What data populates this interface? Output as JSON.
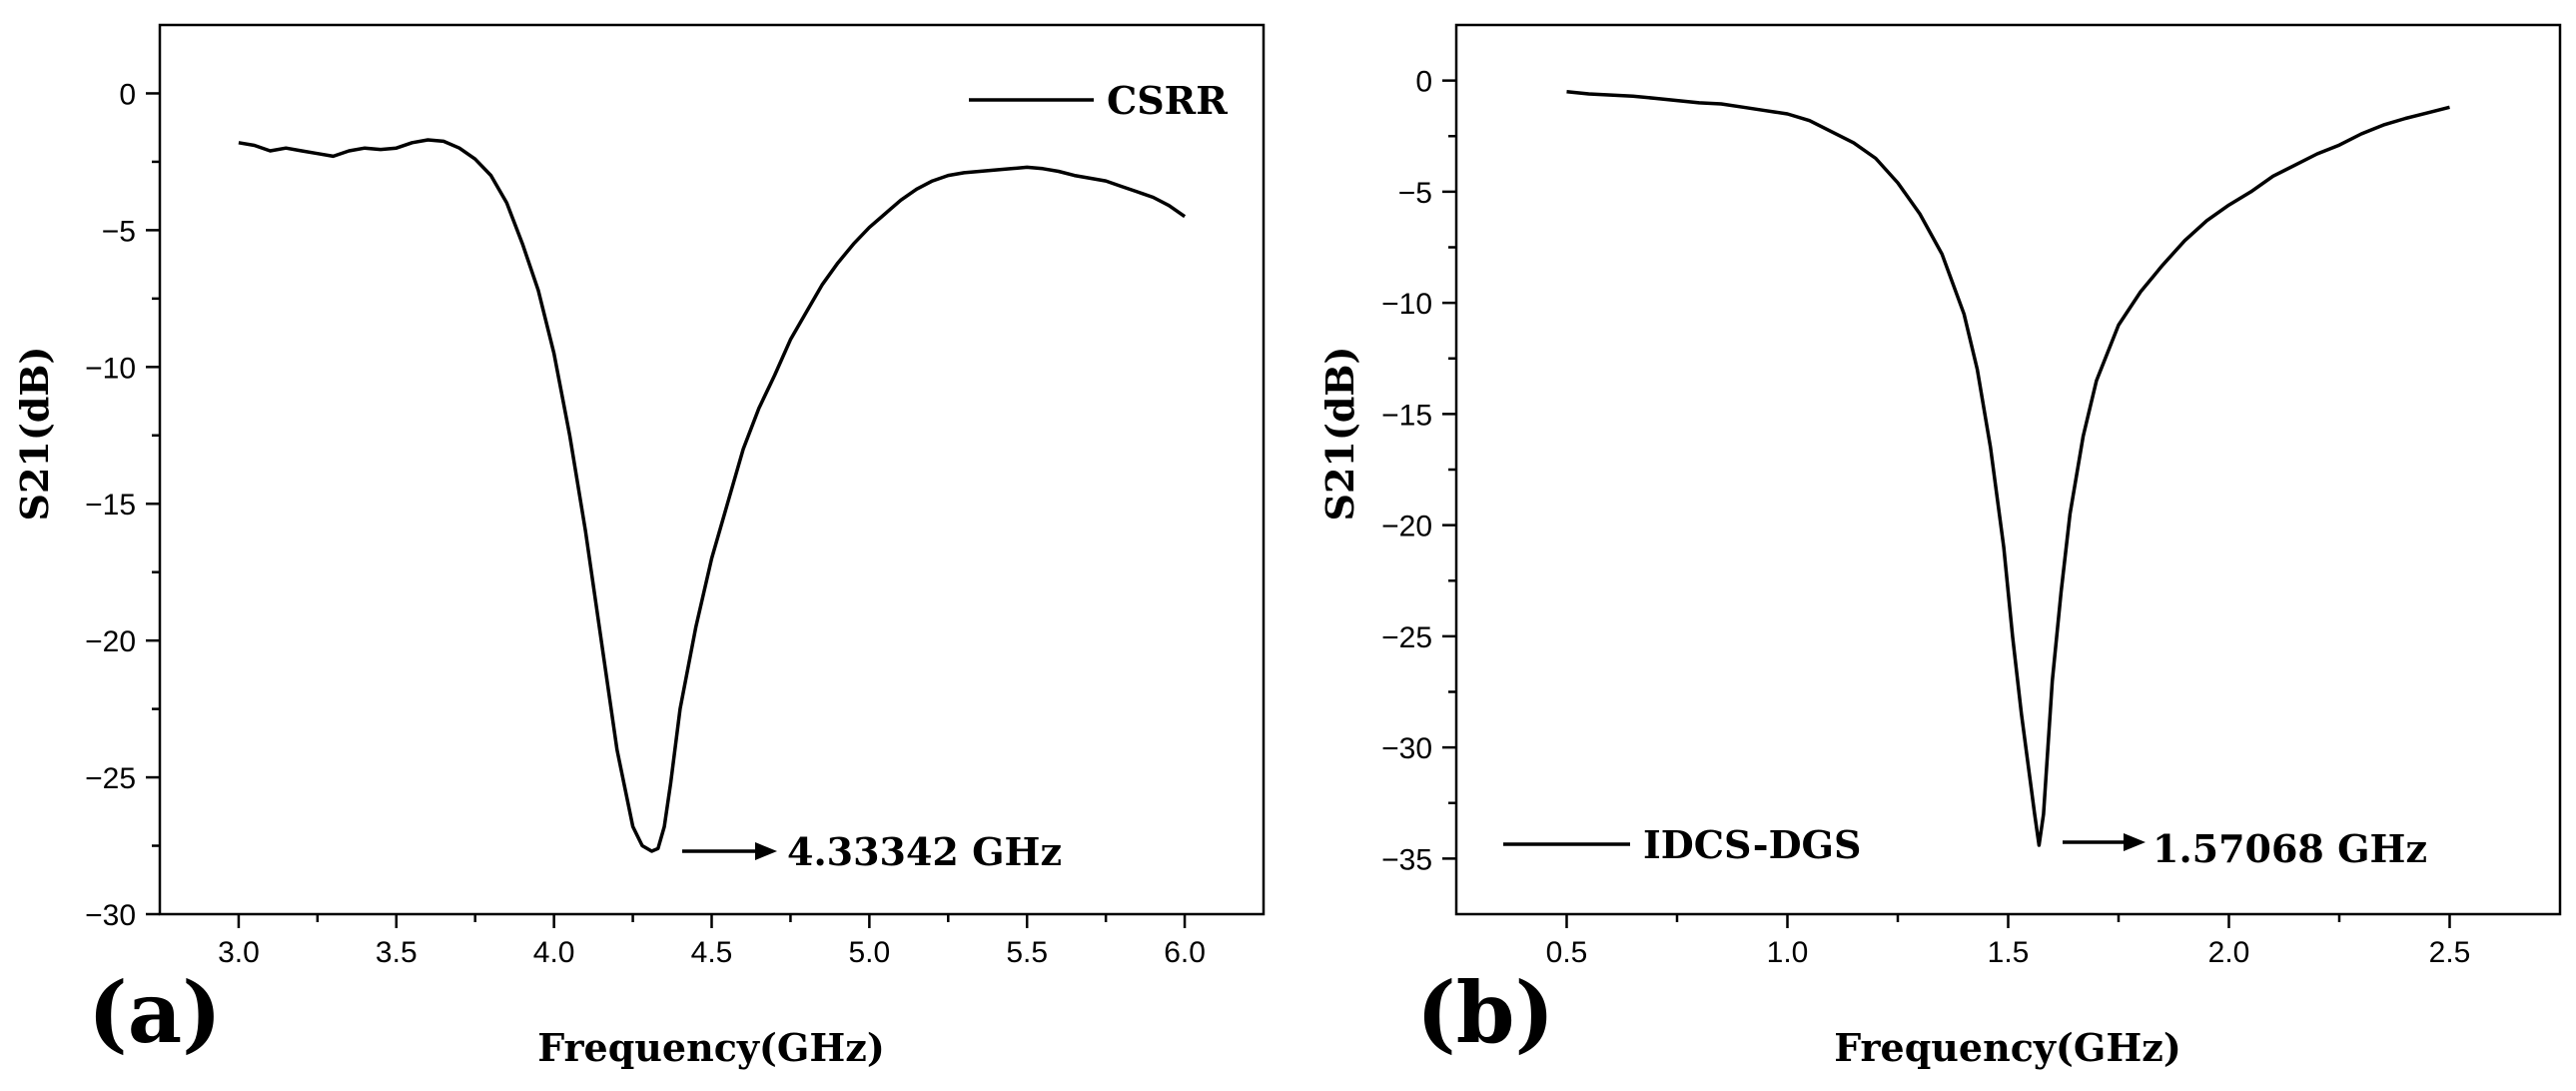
{
  "chart_data": [
    {
      "panel_label": "(a)",
      "type": "line",
      "title": "",
      "xlabel": "Frequency(GHz)",
      "ylabel": "S21(dB)",
      "xlim": [
        2.75,
        6.25
      ],
      "ylim": [
        -30,
        2.5
      ],
      "x_ticks": [
        3.0,
        3.5,
        4.0,
        4.5,
        5.0,
        5.5,
        6.0
      ],
      "x_tick_labels": [
        "3.0",
        "3.5",
        "4.0",
        "4.5",
        "5.0",
        "5.5",
        "6.0"
      ],
      "y_ticks": [
        0,
        -5,
        -10,
        -15,
        -20,
        -25,
        -30
      ],
      "y_tick_labels": [
        "0",
        "−5",
        "−10",
        "−15",
        "−20",
        "−25",
        "−30"
      ],
      "legend": {
        "label": "CSRR",
        "position": "top-right"
      },
      "annotation": {
        "text": "4.33342 GHz",
        "x": 4.33342,
        "y": -27.6
      },
      "series": [
        {
          "name": "CSRR",
          "x": [
            3.0,
            3.05,
            3.1,
            3.15,
            3.2,
            3.25,
            3.3,
            3.35,
            3.4,
            3.45,
            3.5,
            3.55,
            3.6,
            3.65,
            3.7,
            3.75,
            3.8,
            3.85,
            3.9,
            3.95,
            4.0,
            4.05,
            4.1,
            4.15,
            4.2,
            4.25,
            4.28,
            4.31,
            4.33,
            4.35,
            4.37,
            4.4,
            4.45,
            4.5,
            4.55,
            4.6,
            4.65,
            4.7,
            4.75,
            4.8,
            4.85,
            4.9,
            4.95,
            5.0,
            5.05,
            5.1,
            5.15,
            5.2,
            5.25,
            5.3,
            5.35,
            5.4,
            5.45,
            5.5,
            5.55,
            5.6,
            5.65,
            5.7,
            5.75,
            5.8,
            5.85,
            5.9,
            5.95,
            6.0
          ],
          "y": [
            -1.8,
            -1.9,
            -2.1,
            -2.0,
            -2.1,
            -2.2,
            -2.3,
            -2.1,
            -2.0,
            -2.05,
            -2.0,
            -1.8,
            -1.7,
            -1.75,
            -2.0,
            -2.4,
            -3.0,
            -4.0,
            -5.5,
            -7.2,
            -9.5,
            -12.5,
            -16.0,
            -20.0,
            -24.0,
            -26.8,
            -27.5,
            -27.7,
            -27.6,
            -26.8,
            -25.2,
            -22.5,
            -19.5,
            -17.0,
            -15.0,
            -13.0,
            -11.5,
            -10.3,
            -9.0,
            -8.0,
            -7.0,
            -6.2,
            -5.5,
            -4.9,
            -4.4,
            -3.9,
            -3.5,
            -3.2,
            -3.0,
            -2.9,
            -2.85,
            -2.8,
            -2.75,
            -2.7,
            -2.75,
            -2.85,
            -3.0,
            -3.1,
            -3.2,
            -3.4,
            -3.6,
            -3.8,
            -4.1,
            -4.5
          ]
        }
      ]
    },
    {
      "panel_label": "(b)",
      "type": "line",
      "title": "",
      "xlabel": "Frequency(GHz)",
      "ylabel": "S21(dB)",
      "xlim": [
        0.25,
        2.75
      ],
      "ylim": [
        -37.5,
        2.5
      ],
      "x_ticks": [
        0.5,
        1.0,
        1.5,
        2.0,
        2.5
      ],
      "x_tick_labels": [
        "0.5",
        "1.0",
        "1.5",
        "2.0",
        "2.5"
      ],
      "y_ticks": [
        0,
        -5,
        -10,
        -15,
        -20,
        -25,
        -30,
        -35
      ],
      "y_tick_labels": [
        "0",
        "−5",
        "−10",
        "−15",
        "−20",
        "−25",
        "−30",
        "−35"
      ],
      "legend": {
        "label": "IDCS-DGS",
        "position": "bottom-left"
      },
      "annotation": {
        "text": "1.57068 GHz",
        "x": 1.57068,
        "y": -34.4
      },
      "series": [
        {
          "name": "IDCS-DGS",
          "x": [
            0.5,
            0.55,
            0.6,
            0.65,
            0.7,
            0.75,
            0.8,
            0.85,
            0.9,
            0.95,
            1.0,
            1.05,
            1.1,
            1.15,
            1.2,
            1.25,
            1.3,
            1.35,
            1.4,
            1.43,
            1.46,
            1.49,
            1.51,
            1.53,
            1.55,
            1.56,
            1.57,
            1.58,
            1.59,
            1.6,
            1.62,
            1.64,
            1.67,
            1.7,
            1.75,
            1.8,
            1.85,
            1.9,
            1.95,
            2.0,
            2.05,
            2.1,
            2.15,
            2.2,
            2.25,
            2.3,
            2.35,
            2.4,
            2.45,
            2.5
          ],
          "y": [
            -0.5,
            -0.6,
            -0.65,
            -0.7,
            -0.8,
            -0.9,
            -1.0,
            -1.05,
            -1.2,
            -1.35,
            -1.5,
            -1.8,
            -2.3,
            -2.8,
            -3.5,
            -4.6,
            -6.0,
            -7.8,
            -10.5,
            -13.0,
            -16.5,
            -21.0,
            -25.0,
            -28.5,
            -31.5,
            -33.0,
            -34.4,
            -33.0,
            -30.0,
            -27.0,
            -23.0,
            -19.5,
            -16.0,
            -13.5,
            -11.0,
            -9.5,
            -8.3,
            -7.2,
            -6.3,
            -5.6,
            -5.0,
            -4.3,
            -3.8,
            -3.3,
            -2.9,
            -2.4,
            -2.0,
            -1.7,
            -1.45,
            -1.2
          ]
        }
      ]
    }
  ]
}
